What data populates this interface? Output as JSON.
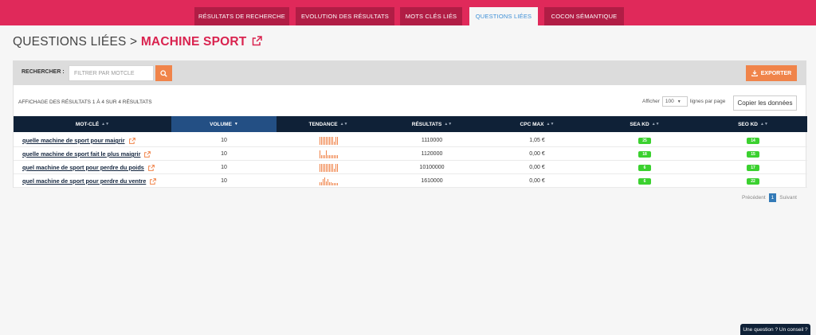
{
  "tabs": [
    {
      "label": "Résultats de recherche",
      "active": false
    },
    {
      "label": "Evolution des résultats",
      "active": false
    },
    {
      "label": "Mots clés liés",
      "active": false
    },
    {
      "label": "Questions liées",
      "active": true
    },
    {
      "label": "Cocon sémantique",
      "active": false
    }
  ],
  "title": {
    "prefix": "QUESTIONS LIÉES > ",
    "keyword": "MACHINE SPORT"
  },
  "search": {
    "label": "RECHERCHER :",
    "placeholder": "FILTRER PAR MOTCLE"
  },
  "export_label": "EXPORTER",
  "info_text": "Affichage des résultats 1 à 4 sur 4 résultats",
  "length": {
    "prefix": "Afficher",
    "value": "100",
    "suffix": "lignes par page"
  },
  "copy_label": "Copier les données",
  "columns": [
    "Mot-clé",
    "Volume",
    "Tendance",
    "Résultats",
    "CPC max",
    "SEA KD",
    "SEO KD"
  ],
  "rows": [
    {
      "keyword": "quelle machine de sport pour maigrir",
      "volume": "10",
      "trend": [
        9,
        9,
        9,
        9,
        9,
        9,
        9,
        9,
        9,
        4,
        9,
        9
      ],
      "results": "1110000",
      "cpc": "1,05 €",
      "sea_kd": "25",
      "seo_kd": "14"
    },
    {
      "keyword": "quelle machine de sport fait le plus maigrir",
      "volume": "10",
      "trend": [
        8,
        3,
        3,
        3,
        8,
        3,
        3,
        3,
        3,
        3,
        3,
        3
      ],
      "results": "1120000",
      "cpc": "0,00 €",
      "sea_kd": "18",
      "seo_kd": "15"
    },
    {
      "keyword": "quel machine de sport pour perdre du poids",
      "volume": "10",
      "trend": [
        9,
        9,
        9,
        9,
        9,
        9,
        9,
        9,
        9,
        4,
        9,
        9
      ],
      "results": "10100000",
      "cpc": "0,00 €",
      "sea_kd": "6",
      "seo_kd": "17"
    },
    {
      "keyword": "quel machine de sport pour perdre du ventre",
      "volume": "10",
      "trend": [
        3,
        3,
        6,
        8,
        4,
        6,
        3,
        3,
        2,
        2,
        2,
        2
      ],
      "results": "1610000",
      "cpc": "0,00 €",
      "sea_kd": "6",
      "seo_kd": "22"
    }
  ],
  "pagination": {
    "prev": "Précédent",
    "current": "1",
    "next": "Suivant"
  },
  "help_label": "Une question ? Un conseil ?",
  "colors": {
    "brand": "#e0295a",
    "tab_bg": "#b11d45",
    "accent": "#f0844a",
    "header_dark": "#0f2137",
    "header_sorted": "#234f84",
    "badge_green": "#3bd12f"
  }
}
